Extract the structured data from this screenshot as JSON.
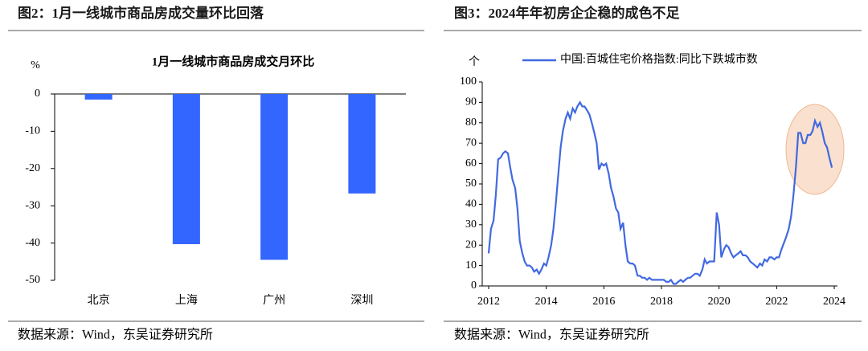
{
  "chart_data": [
    {
      "type": "bar",
      "figure_title": "图2：1月一线城市商品房成交量环比回落",
      "title": "1月一线城市商品房成交月环比",
      "y_unit": "%",
      "categories": [
        "北京",
        "上海",
        "广州",
        "深圳"
      ],
      "values": [
        -1.5,
        -40.3,
        -44.5,
        -26.7
      ],
      "color": "#3366ff",
      "ylim": [
        -50,
        0
      ],
      "yticks": [
        0,
        -10,
        -20,
        -30,
        -40,
        -50
      ],
      "source": "数据来源：Wind，东吴证券研究所"
    },
    {
      "type": "line",
      "figure_title": "图3：2024年年初房企企稳的成色不足",
      "y_unit": "个",
      "x": [
        2012,
        2012.08,
        2012.17,
        2012.25,
        2012.33,
        2012.42,
        2012.5,
        2012.58,
        2012.67,
        2012.75,
        2012.83,
        2012.92,
        2013,
        2013.08,
        2013.17,
        2013.25,
        2013.33,
        2013.42,
        2013.5,
        2013.58,
        2013.67,
        2013.75,
        2013.83,
        2013.92,
        2014,
        2014.08,
        2014.17,
        2014.25,
        2014.33,
        2014.42,
        2014.5,
        2014.58,
        2014.67,
        2014.75,
        2014.83,
        2014.92,
        2015,
        2015.08,
        2015.17,
        2015.25,
        2015.33,
        2015.42,
        2015.5,
        2015.58,
        2015.67,
        2015.75,
        2015.83,
        2015.92,
        2016,
        2016.08,
        2016.17,
        2016.25,
        2016.33,
        2016.42,
        2016.5,
        2016.58,
        2016.67,
        2016.75,
        2016.83,
        2016.92,
        2017,
        2017.08,
        2017.17,
        2017.25,
        2017.33,
        2017.42,
        2017.5,
        2017.58,
        2017.67,
        2017.75,
        2017.83,
        2017.92,
        2018,
        2018.08,
        2018.17,
        2018.25,
        2018.33,
        2018.42,
        2018.5,
        2018.58,
        2018.67,
        2018.75,
        2018.83,
        2018.92,
        2019,
        2019.08,
        2019.17,
        2019.25,
        2019.33,
        2019.42,
        2019.5,
        2019.58,
        2019.67,
        2019.75,
        2019.83,
        2019.92,
        2020,
        2020.08,
        2020.17,
        2020.25,
        2020.33,
        2020.42,
        2020.5,
        2020.58,
        2020.67,
        2020.75,
        2020.83,
        2020.92,
        2021,
        2021.08,
        2021.17,
        2021.25,
        2021.33,
        2021.42,
        2021.5,
        2021.58,
        2021.67,
        2021.75,
        2021.83,
        2021.92,
        2022,
        2022.08,
        2022.17,
        2022.25,
        2022.33,
        2022.42,
        2022.5,
        2022.58,
        2022.67,
        2022.75,
        2022.83,
        2022.92,
        2023,
        2023.08,
        2023.17,
        2023.25,
        2023.33,
        2023.42,
        2023.5,
        2023.58,
        2023.67,
        2023.75,
        2023.83,
        2023.92
      ],
      "series": [
        {
          "name": "中国:百城住宅价格指数:同比下跌城市数",
          "color": "#4169e1",
          "values": [
            16,
            28,
            32,
            45,
            62,
            63,
            65,
            66,
            65,
            58,
            52,
            48,
            38,
            22,
            16,
            12,
            10,
            10,
            9,
            7,
            8,
            6,
            8,
            11,
            10,
            14,
            20,
            28,
            40,
            55,
            68,
            76,
            82,
            85,
            82,
            87,
            85,
            88,
            90,
            88,
            88,
            86,
            84,
            80,
            75,
            70,
            57,
            60,
            59,
            60,
            55,
            48,
            44,
            38,
            36,
            28,
            31,
            20,
            12,
            11,
            11,
            10,
            5,
            5,
            4,
            4,
            3,
            4,
            3,
            3,
            3,
            3,
            3,
            3,
            2,
            2,
            3,
            1,
            1,
            2,
            3,
            2,
            3,
            4,
            4,
            5,
            6,
            6,
            5,
            8,
            13,
            11,
            12,
            12,
            12,
            36,
            30,
            14,
            18,
            20,
            19,
            16,
            14,
            15,
            16,
            17,
            15,
            15,
            14,
            12,
            11,
            10,
            9,
            11,
            10,
            13,
            12,
            14,
            14,
            13,
            14,
            14,
            18,
            21,
            24,
            28,
            34,
            44,
            58,
            75,
            75,
            70,
            70,
            74,
            74,
            76,
            81,
            78,
            80,
            76,
            70,
            68,
            63,
            58
          ]
        }
      ],
      "xlim": [
        2012,
        2024
      ],
      "xticks": [
        2012,
        2014,
        2016,
        2018,
        2020,
        2022,
        2024
      ],
      "ylim": [
        0,
        100
      ],
      "yticks": [
        0,
        10,
        20,
        30,
        40,
        50,
        60,
        70,
        80,
        90,
        100
      ],
      "source": "数据来源：Wind，东吴证券研究所"
    }
  ]
}
